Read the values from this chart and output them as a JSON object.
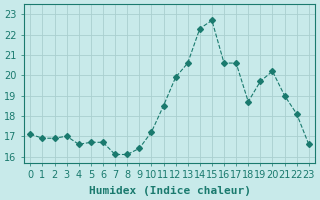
{
  "x": [
    0,
    1,
    2,
    3,
    4,
    5,
    6,
    7,
    8,
    9,
    10,
    11,
    12,
    13,
    14,
    15,
    16,
    17,
    18,
    19,
    20,
    21,
    22,
    23
  ],
  "y": [
    17.1,
    16.9,
    16.9,
    17.0,
    16.6,
    16.7,
    16.7,
    16.1,
    16.1,
    16.4,
    17.2,
    18.5,
    19.9,
    20.6,
    22.3,
    22.7,
    20.6,
    20.6,
    18.7,
    19.7,
    20.2,
    19.0,
    18.1,
    16.6
  ],
  "line_color": "#1a7a6e",
  "marker": "D",
  "markersize": 3,
  "linewidth": 0.8,
  "linestyle": "--",
  "bg_color": "#c8eaea",
  "grid_color": "#aacfcf",
  "xlabel": "Humidex (Indice chaleur)",
  "xlim": [
    -0.5,
    23.5
  ],
  "ylim": [
    15.7,
    23.5
  ],
  "yticks": [
    16,
    17,
    18,
    19,
    20,
    21,
    22,
    23
  ],
  "xticks": [
    0,
    1,
    2,
    3,
    4,
    5,
    6,
    7,
    8,
    9,
    10,
    11,
    12,
    13,
    14,
    15,
    16,
    17,
    18,
    19,
    20,
    21,
    22,
    23
  ],
  "tick_color": "#1a7a6e",
  "label_color": "#1a7a6e",
  "spine_color": "#1a7a6e",
  "xlabel_fontsize": 8,
  "tick_fontsize": 7
}
